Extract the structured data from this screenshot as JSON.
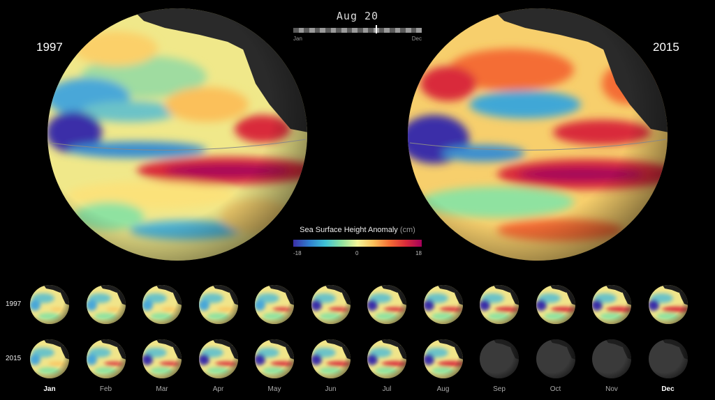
{
  "left_year": "1997",
  "right_year": "2015",
  "timeline": {
    "date": "Aug 20",
    "start_label": "Jan",
    "end_label": "Dec",
    "progress": 0.64
  },
  "colorbar": {
    "title": "Sea Surface Height Anomaly",
    "unit": "(cm)",
    "min_label": "-18",
    "mid_label": "0",
    "max_label": "18"
  },
  "rows": [
    {
      "label": "1997",
      "filled_months": 12
    },
    {
      "label": "2015",
      "filled_months": 8
    }
  ],
  "months": [
    "Jan",
    "Feb",
    "Mar",
    "Apr",
    "May",
    "Jun",
    "Jul",
    "Aug",
    "Sep",
    "Oct",
    "Nov",
    "Dec"
  ],
  "colors": {
    "negative": "#3b2fa8",
    "neutral": "#f4f59a",
    "positive": "#a5005a",
    "land": "#2a2a2a"
  }
}
